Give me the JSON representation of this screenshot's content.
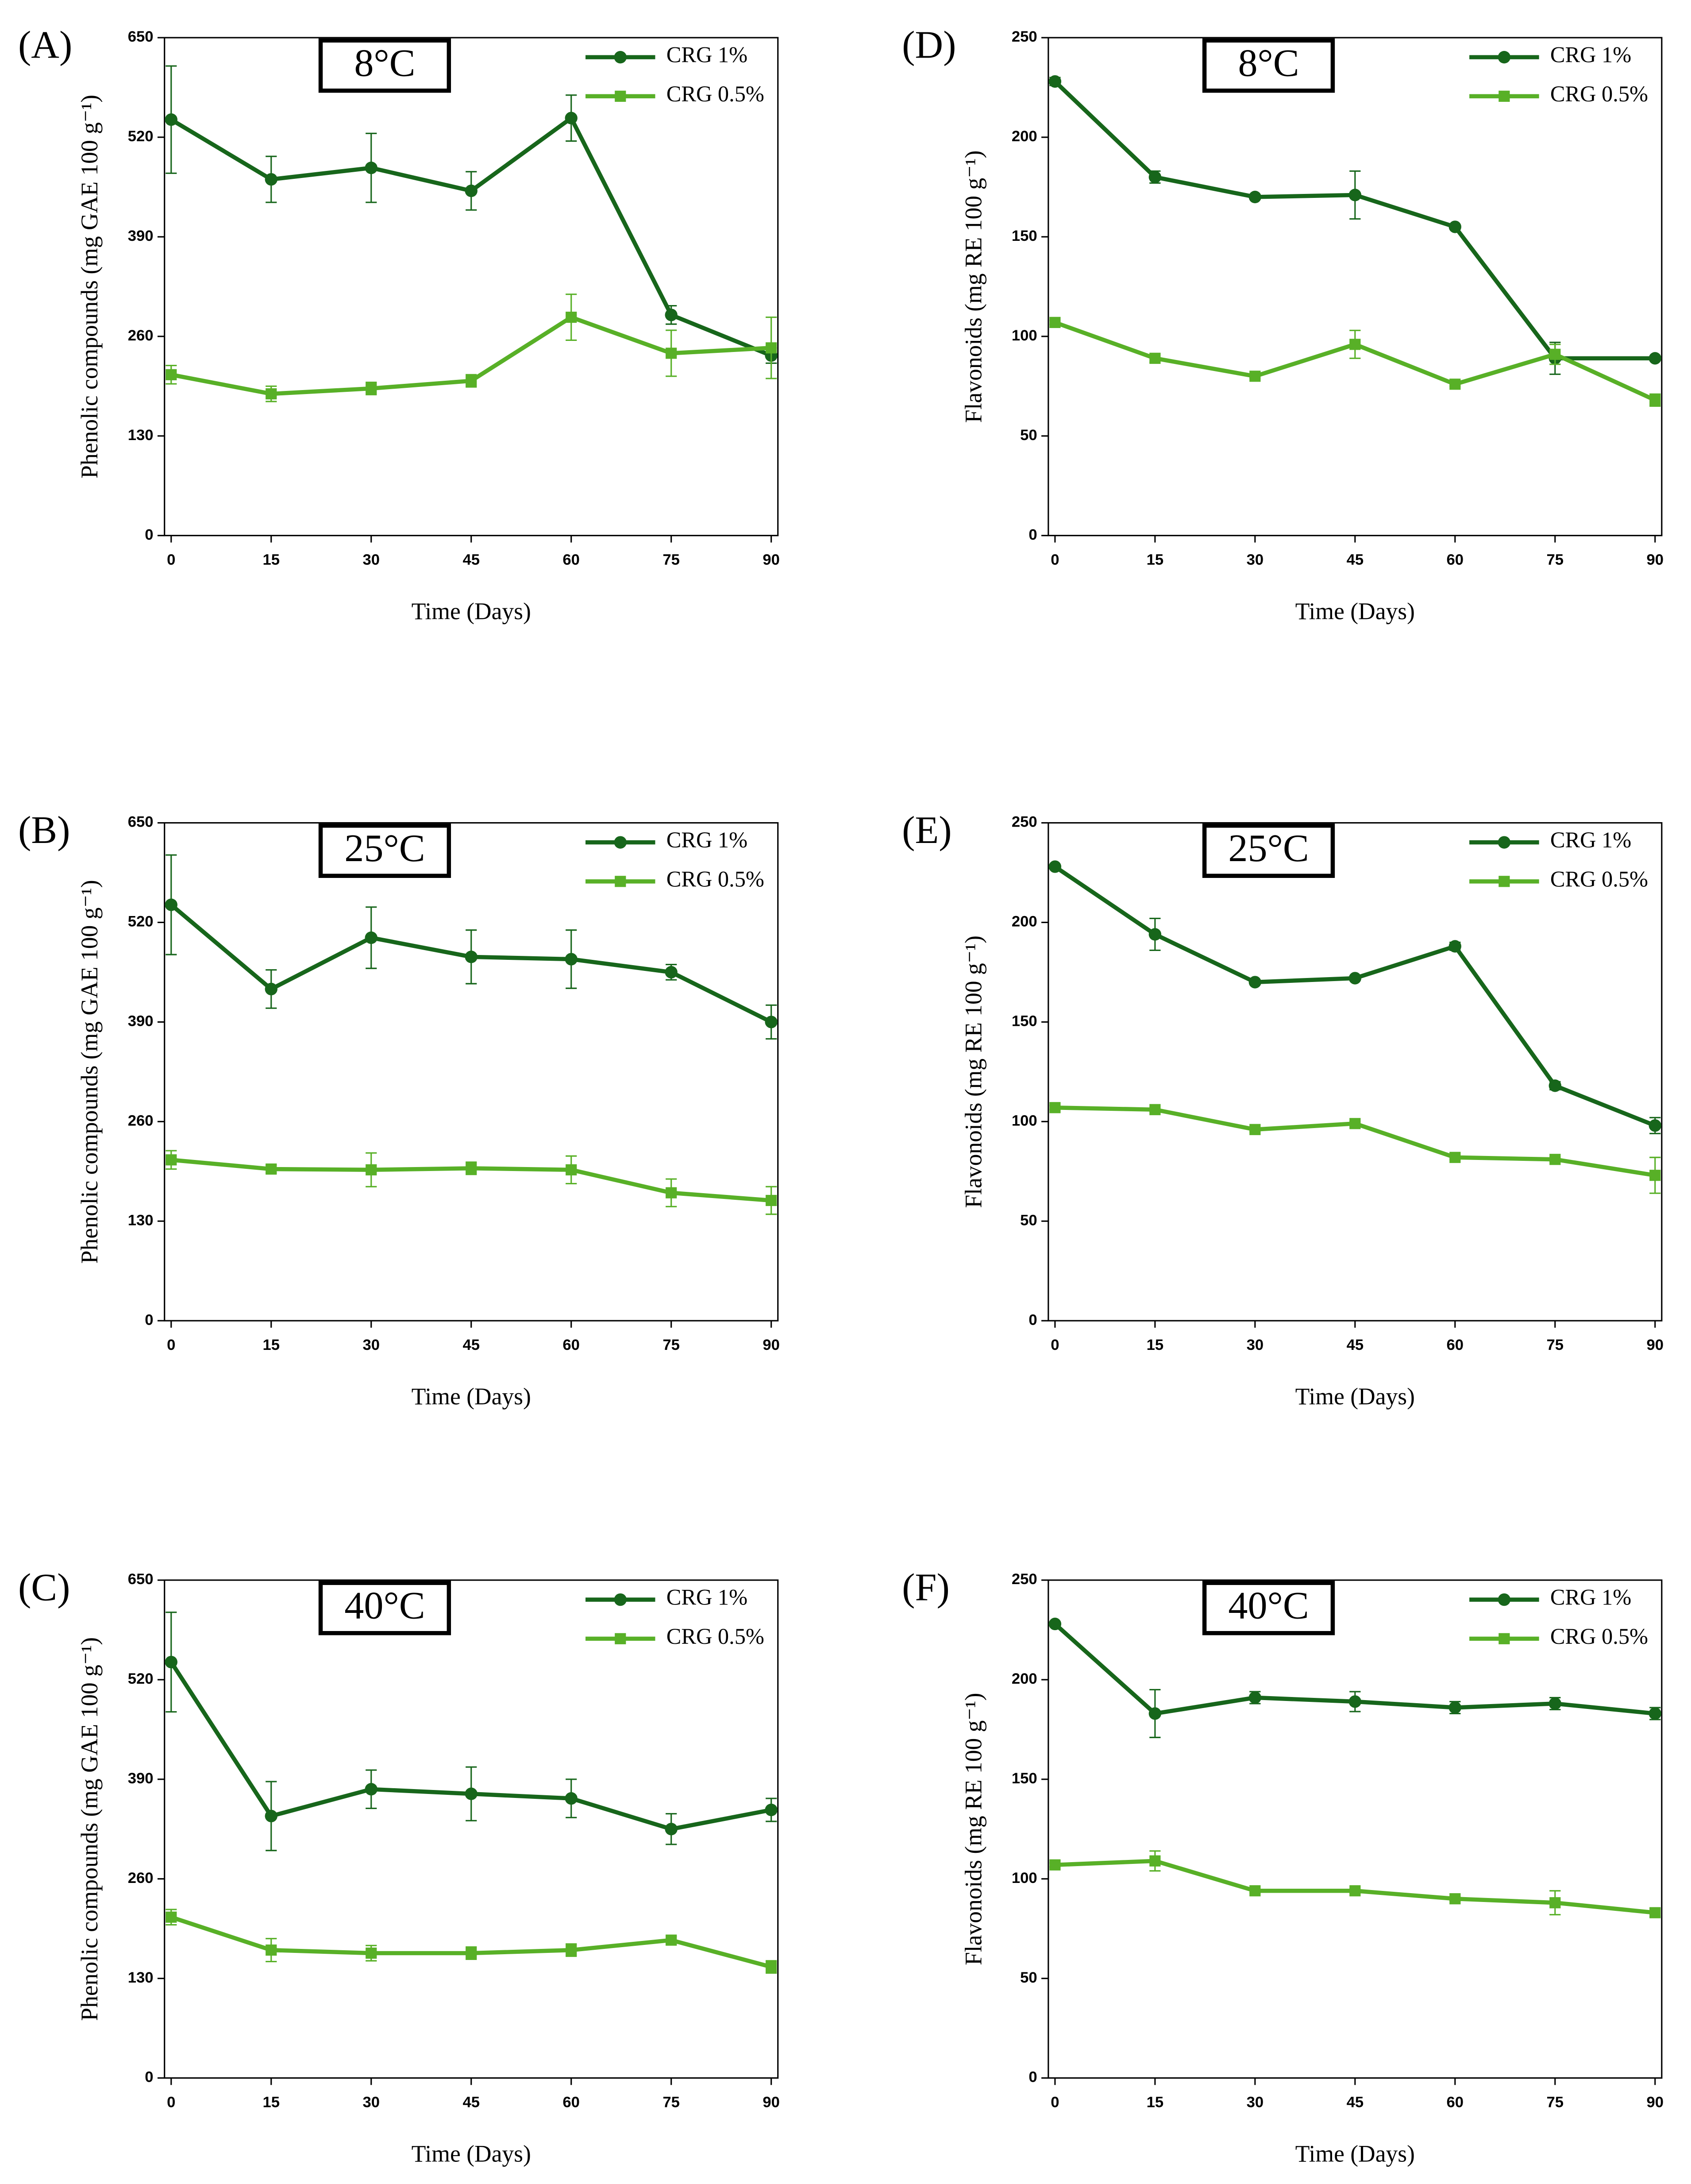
{
  "chart_data": [
    {
      "type": "line",
      "panel": "(A)",
      "condition": "8°C",
      "ylabel": "Phenolic compounds (mg  GAE 100 g⁻¹)",
      "xlabel": "Time (Days)",
      "x": [
        0,
        15,
        30,
        45,
        60,
        75,
        90
      ],
      "xlim": [
        -1,
        91
      ],
      "xticks": [
        0,
        15,
        30,
        45,
        60,
        75,
        90
      ],
      "ylim": [
        0,
        650
      ],
      "yticks": [
        0,
        130,
        260,
        390,
        520,
        650
      ],
      "series": [
        {
          "name": "CRG 1%",
          "color": "#17661b",
          "marker": "circle",
          "values": [
            543,
            465,
            480,
            450,
            545,
            288,
            235
          ],
          "errors": [
            70,
            30,
            45,
            25,
            30,
            12,
            10
          ]
        },
        {
          "name": "CRG 0.5%",
          "color": "#58b027",
          "marker": "square",
          "values": [
            210,
            185,
            192,
            202,
            285,
            238,
            245
          ],
          "errors": [
            12,
            10,
            8,
            8,
            30,
            30,
            40
          ]
        }
      ]
    },
    {
      "type": "line",
      "panel": "(B)",
      "condition": "25°C",
      "ylabel": "Phenolic compounds (mg  GAE 100 g⁻¹)",
      "xlabel": "Time (Days)",
      "x": [
        0,
        15,
        30,
        45,
        60,
        75,
        90
      ],
      "xlim": [
        -1,
        91
      ],
      "xticks": [
        0,
        15,
        30,
        45,
        60,
        75,
        90
      ],
      "ylim": [
        0,
        650
      ],
      "yticks": [
        0,
        130,
        260,
        390,
        520,
        650
      ],
      "series": [
        {
          "name": "CRG 1%",
          "color": "#17661b",
          "marker": "circle",
          "values": [
            543,
            433,
            500,
            475,
            472,
            455,
            390
          ],
          "errors": [
            65,
            25,
            40,
            35,
            38,
            10,
            22
          ]
        },
        {
          "name": "CRG 0.5%",
          "color": "#58b027",
          "marker": "square",
          "values": [
            210,
            198,
            197,
            199,
            197,
            167,
            157
          ],
          "errors": [
            12,
            5,
            22,
            8,
            18,
            18,
            18
          ]
        }
      ]
    },
    {
      "type": "line",
      "panel": "(C)",
      "condition": "40°C",
      "ylabel": "Phenolic compounds (mg  GAE 100 g⁻¹)",
      "xlabel": "Time (Days)",
      "x": [
        0,
        15,
        30,
        45,
        60,
        75,
        90
      ],
      "xlim": [
        -1,
        91
      ],
      "xticks": [
        0,
        15,
        30,
        45,
        60,
        75,
        90
      ],
      "ylim": [
        0,
        650
      ],
      "yticks": [
        0,
        130,
        260,
        390,
        520,
        650
      ],
      "series": [
        {
          "name": "CRG 1%",
          "color": "#17661b",
          "marker": "circle",
          "values": [
            543,
            342,
            377,
            371,
            365,
            325,
            350
          ],
          "errors": [
            65,
            45,
            25,
            35,
            25,
            20,
            15
          ]
        },
        {
          "name": "CRG 0.5%",
          "color": "#58b027",
          "marker": "square",
          "values": [
            210,
            167,
            163,
            163,
            167,
            180,
            145
          ],
          "errors": [
            10,
            15,
            10,
            8,
            8,
            5,
            8
          ]
        }
      ]
    },
    {
      "type": "line",
      "panel": "(D)",
      "condition": "8°C",
      "ylabel": "Flavonoids (mg RE 100 g⁻¹)",
      "xlabel": "Time (Days)",
      "x": [
        0,
        15,
        30,
        45,
        60,
        75,
        90
      ],
      "xlim": [
        -1,
        91
      ],
      "xticks": [
        0,
        15,
        30,
        45,
        60,
        75,
        90
      ],
      "ylim": [
        0,
        250
      ],
      "yticks": [
        0,
        50,
        100,
        150,
        200,
        250
      ],
      "series": [
        {
          "name": "CRG 1%",
          "color": "#17661b",
          "marker": "circle",
          "values": [
            228,
            180,
            170,
            171,
            155,
            89,
            89
          ],
          "errors": [
            2,
            3,
            1,
            12,
            1,
            8,
            1
          ]
        },
        {
          "name": "CRG 0.5%",
          "color": "#58b027",
          "marker": "square",
          "values": [
            107,
            89,
            80,
            96,
            76,
            91,
            68
          ],
          "errors": [
            1,
            2,
            1,
            7,
            1,
            5,
            3
          ]
        }
      ]
    },
    {
      "type": "line",
      "panel": "(E)",
      "condition": "25°C",
      "ylabel": "Flavonoids (mg RE 100 g⁻¹)",
      "xlabel": "Time (Days)",
      "x": [
        0,
        15,
        30,
        45,
        60,
        75,
        90
      ],
      "xlim": [
        -1,
        91
      ],
      "xticks": [
        0,
        15,
        30,
        45,
        60,
        75,
        90
      ],
      "ylim": [
        0,
        250
      ],
      "yticks": [
        0,
        50,
        100,
        150,
        200,
        250
      ],
      "series": [
        {
          "name": "CRG 1%",
          "color": "#17661b",
          "marker": "circle",
          "values": [
            228,
            194,
            170,
            172,
            188,
            118,
            98
          ],
          "errors": [
            1,
            8,
            1,
            1,
            2,
            2,
            4
          ]
        },
        {
          "name": "CRG 0.5%",
          "color": "#58b027",
          "marker": "square",
          "values": [
            107,
            106,
            96,
            99,
            82,
            81,
            73
          ],
          "errors": [
            1,
            1,
            1,
            1,
            1,
            1,
            9
          ]
        }
      ]
    },
    {
      "type": "line",
      "panel": "(F)",
      "condition": "40°C",
      "ylabel": "Flavonoids (mg RE 100 g⁻¹)",
      "xlabel": "Time (Days)",
      "x": [
        0,
        15,
        30,
        45,
        60,
        75,
        90
      ],
      "xlim": [
        -1,
        91
      ],
      "xticks": [
        0,
        15,
        30,
        45,
        60,
        75,
        90
      ],
      "ylim": [
        0,
        250
      ],
      "yticks": [
        0,
        50,
        100,
        150,
        200,
        250
      ],
      "series": [
        {
          "name": "CRG 1%",
          "color": "#17661b",
          "marker": "circle",
          "values": [
            228,
            183,
            191,
            189,
            186,
            188,
            183
          ],
          "errors": [
            1,
            12,
            3,
            5,
            3,
            3,
            3
          ]
        },
        {
          "name": "CRG 0.5%",
          "color": "#58b027",
          "marker": "square",
          "values": [
            107,
            109,
            94,
            94,
            90,
            88,
            83
          ],
          "errors": [
            1,
            5,
            1,
            1,
            1,
            6,
            2
          ]
        }
      ]
    }
  ]
}
